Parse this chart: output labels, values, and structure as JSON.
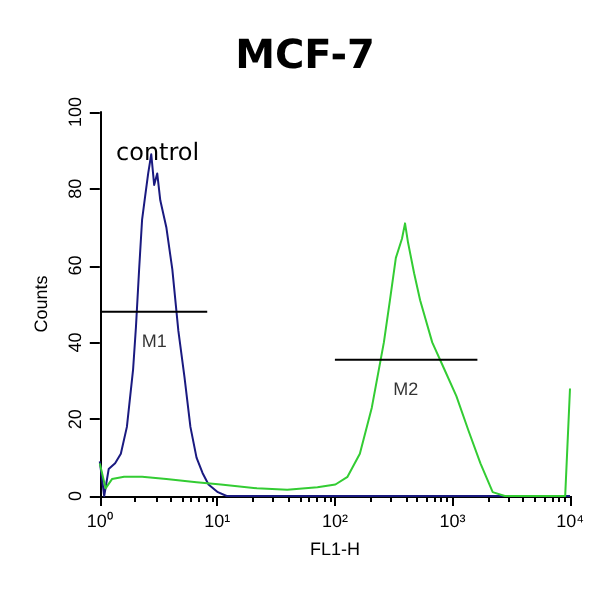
{
  "chart_data": {
    "type": "line",
    "title": "MCF-7",
    "xlabel": "FL1-H",
    "ylabel": "Counts",
    "annotations": [
      "control",
      {
        "text": "M1",
        "x": 2.9,
        "y": 48
      },
      {
        "text": "M2",
        "x": 400,
        "y": 35.5
      }
    ],
    "series": [
      {
        "color": "#1a1a80",
        "x": [
          1,
          1.09,
          1.19,
          1.35,
          1.51,
          1.7,
          1.92,
          2.03,
          2.16,
          2.29,
          2.43,
          2.58,
          2.74,
          2.9,
          3.08,
          3.27,
          3.68,
          4.14,
          4.66,
          5.25,
          5.9,
          6.65,
          7.48,
          8.41,
          10.1,
          12,
          15.1,
          10000
        ],
        "values": [
          9,
          0,
          7,
          8.5,
          11,
          18,
          33,
          44,
          59,
          72,
          78,
          84,
          89,
          81,
          84,
          77,
          70,
          59,
          43,
          31,
          18,
          10,
          6,
          3,
          1,
          0,
          0,
          0
        ]
      },
      {
        "color": "#33cc33",
        "x": [
          1,
          1.12,
          1.27,
          1.61,
          2.29,
          3.68,
          6.65,
          10.7,
          21.7,
          39.3,
          71,
          101,
          128,
          163,
          206,
          261,
          294,
          330,
          372,
          395,
          419,
          472,
          531,
          673,
          853,
          1080,
          1370,
          1730,
          2200,
          2790,
          9100,
          10000
        ],
        "values": [
          8.5,
          2,
          4.4,
          5,
          5,
          4.4,
          3.6,
          3,
          2,
          1.6,
          2.3,
          3,
          5,
          11,
          23,
          40,
          51,
          62,
          67,
          71,
          66,
          58,
          51,
          40,
          33,
          26,
          17,
          8.5,
          1,
          0,
          0,
          28
        ]
      },
      {
        "color": "#000000",
        "x": [
          1.04,
          8.2
        ],
        "values": [
          48,
          48
        ]
      },
      {
        "color": "#000000",
        "x": [
          100,
          1630
        ],
        "values": [
          35.5,
          35.5
        ]
      }
    ],
    "xlim": [
      1,
      10000
    ],
    "xticks": [
      {
        "value": 1,
        "label": "10⁰"
      },
      {
        "value": 10,
        "label": "10¹"
      },
      {
        "value": 100,
        "label": "10²"
      },
      {
        "value": 1000,
        "label": "10³"
      },
      {
        "value": 10000,
        "label": "10⁴"
      }
    ],
    "ylim": [
      0,
      100
    ],
    "yticks": [
      0,
      20,
      40,
      60,
      80,
      100
    ],
    "log": "x",
    "grid": false,
    "marker": "none",
    "line_style": "solid"
  }
}
